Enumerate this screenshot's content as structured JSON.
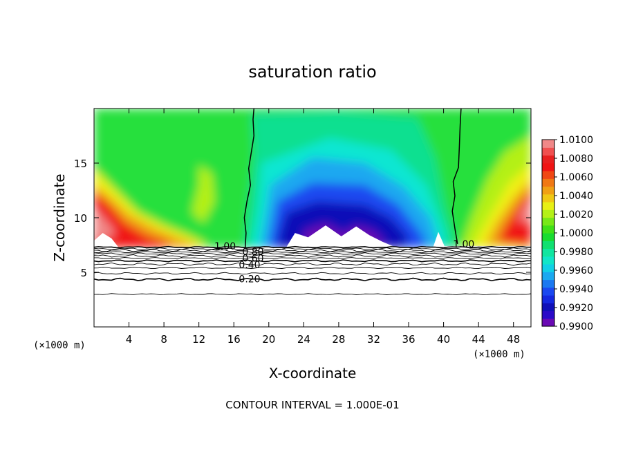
{
  "chart_data": {
    "type": "heatmap",
    "title": "saturation ratio",
    "xlabel": "X-coordinate",
    "ylabel": "Z-coordinate",
    "x_unit": "(×1000 m)",
    "z_unit": "(×1000 m)",
    "xlim": [
      0,
      50
    ],
    "ylim": [
      0,
      20
    ],
    "x_ticks": [
      4,
      8,
      12,
      16,
      20,
      24,
      28,
      32,
      36,
      40,
      44,
      48
    ],
    "y_ticks": [
      5,
      10,
      15
    ],
    "colorbar": {
      "labels": [
        "1.0100",
        "1.0080",
        "1.0060",
        "1.0040",
        "1.0020",
        "1.0000",
        "0.9980",
        "0.9960",
        "0.9940",
        "0.9920",
        "0.9900"
      ],
      "range": [
        0.99,
        1.01
      ]
    },
    "contour_labels": [
      {
        "text": "1.00",
        "x": 15.0,
        "z": 7.4
      },
      {
        "text": "0.80",
        "x": 18.2,
        "z": 6.9
      },
      {
        "text": "0.60",
        "x": 18.2,
        "z": 6.3
      },
      {
        "text": "0.40",
        "x": 17.8,
        "z": 5.7
      },
      {
        "text": "0.20",
        "x": 17.8,
        "z": 4.4
      },
      {
        "text": "1.00",
        "x": 42.3,
        "z": 7.6
      }
    ],
    "contour_interval_note": "CONTOUR INTERVAL = 1.000E-01",
    "colors": {
      "purple": "#6a0ab4",
      "navy": "#1010b8",
      "blue": "#1a48f0",
      "sky": "#1aa8f0",
      "cyan": "#10e6d2",
      "teal_green": "#10e090",
      "green": "#28e03c",
      "yellow_green": "#b4f018",
      "yellow": "#f0f014",
      "orange": "#f0a014",
      "red": "#f01414",
      "pink": "#f08888"
    }
  }
}
